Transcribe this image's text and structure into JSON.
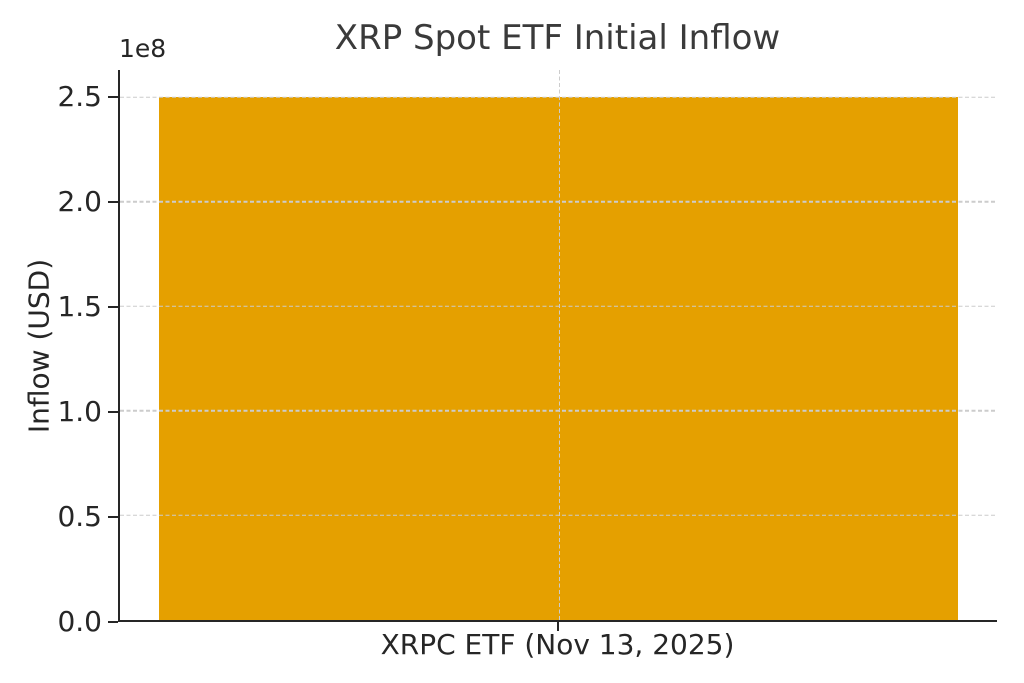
{
  "figure": {
    "background": "#ffffff",
    "text_color": "#262626",
    "title_color": "#3a3a3a",
    "spine_color": "#262626"
  },
  "chart_data": {
    "type": "bar",
    "title": "XRP Spot ETF Initial Inflow",
    "xlabel": "",
    "ylabel": "Inflow (USD)",
    "categories": [
      "XRPC ETF (Nov 13, 2025)"
    ],
    "values": [
      250000000
    ],
    "ylim": [
      0,
      263000000
    ],
    "yticks": [
      0,
      50000000,
      100000000,
      150000000,
      200000000,
      250000000
    ],
    "ytick_labels": [
      "0.0",
      "0.5",
      "1.0",
      "1.5",
      "2.0",
      "2.5"
    ],
    "y_offset_text": "1e8",
    "bar_color": "#e5a000",
    "grid": true,
    "grid_color": "#cccccc",
    "grid_style": "dashed",
    "legend_position": "none"
  }
}
